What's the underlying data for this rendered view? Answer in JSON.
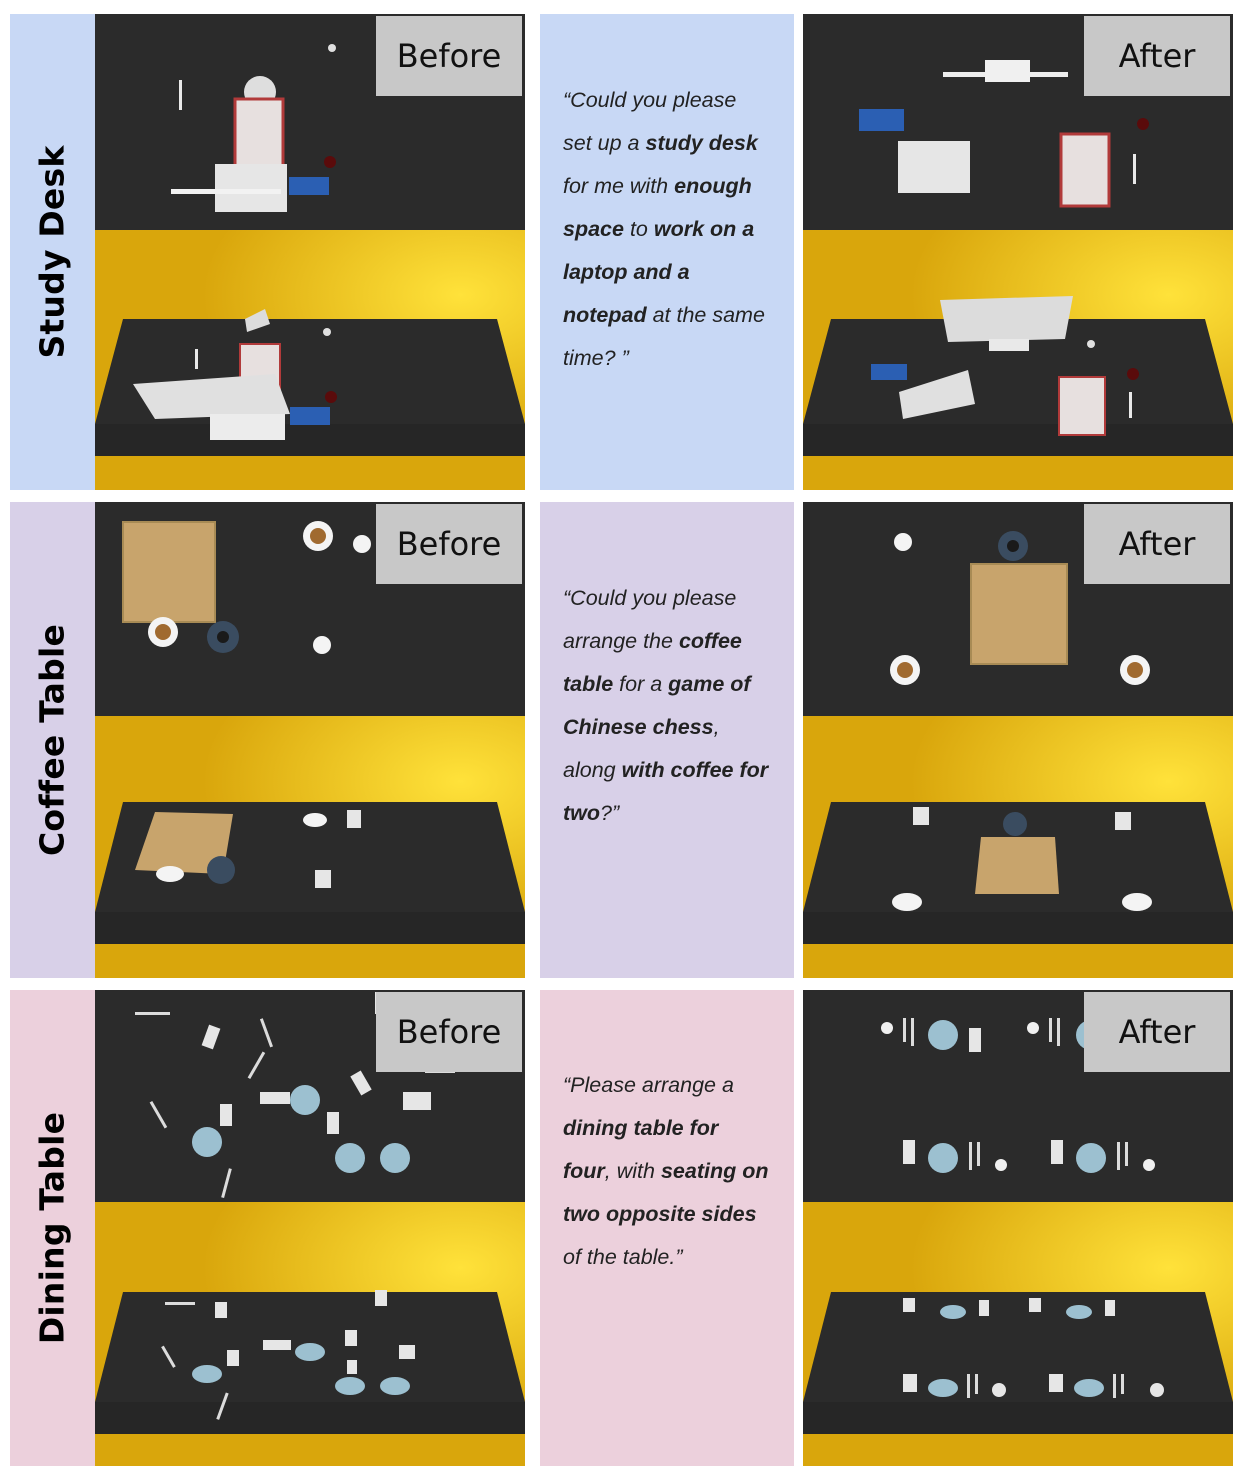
{
  "rows": [
    {
      "label": "Study Desk",
      "colors": {
        "label_bg": "#c8d8f5",
        "prompt_bg": "#c8d8f5"
      },
      "before_tag": "Before",
      "after_tag": "After",
      "prompt": [
        {
          "t": "“",
          "b": false
        },
        {
          "t": "Could you please set up a ",
          "b": false
        },
        {
          "t": "study desk",
          "b": true
        },
        {
          "t": " for me with ",
          "b": false
        },
        {
          "t": "enough space",
          "b": true
        },
        {
          "t": " to ",
          "b": false
        },
        {
          "t": "work on a laptop and a notepad",
          "b": true
        },
        {
          "t": " at the same time? ",
          "b": false
        },
        {
          "t": "”",
          "b": false
        }
      ]
    },
    {
      "label": "Coffee Table",
      "colors": {
        "label_bg": "#d8d0e8",
        "prompt_bg": "#d8d0e8"
      },
      "before_tag": "Before",
      "after_tag": "After",
      "prompt": [
        {
          "t": "“",
          "b": false
        },
        {
          "t": "Could you please arrange the ",
          "b": false
        },
        {
          "t": "coffee table",
          "b": true
        },
        {
          "t": " for a ",
          "b": false
        },
        {
          "t": "game of Chinese chess",
          "b": true
        },
        {
          "t": ", along ",
          "b": false
        },
        {
          "t": "with coffee for two",
          "b": true
        },
        {
          "t": "?",
          "b": false
        },
        {
          "t": "”",
          "b": false
        }
      ]
    },
    {
      "label": "Dining Table",
      "colors": {
        "label_bg": "#ecd0dc",
        "prompt_bg": "#ecd0dc"
      },
      "before_tag": "Before",
      "after_tag": "After",
      "prompt": [
        {
          "t": "“",
          "b": false
        },
        {
          "t": "Please arrange a ",
          "b": false
        },
        {
          "t": "dining table for four",
          "b": true
        },
        {
          "t": ", with ",
          "b": false
        },
        {
          "t": "seating on two opposite sides",
          "b": true
        },
        {
          "t": " of the table.",
          "b": false
        },
        {
          "t": "”",
          "b": false
        }
      ]
    }
  ],
  "palette": {
    "floor": "#d9a60c",
    "glow": "#ffe23a",
    "table": "#2b2b2b",
    "board": "#c8a46c",
    "plate": "#9cc0d0",
    "white_obj": "#eeeeee"
  }
}
